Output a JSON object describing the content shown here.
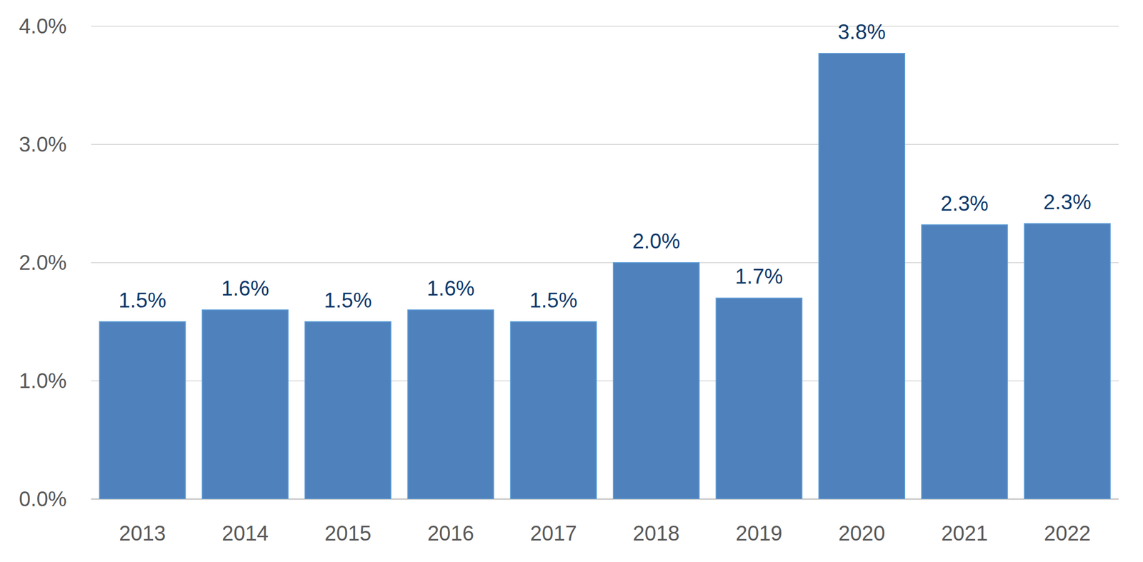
{
  "chart_data": {
    "type": "bar",
    "categories": [
      "2013",
      "2014",
      "2015",
      "2016",
      "2017",
      "2018",
      "2019",
      "2020",
      "2021",
      "2022"
    ],
    "values": [
      1.5,
      1.6,
      1.5,
      1.6,
      1.5,
      2.0,
      1.7,
      3.77,
      2.32,
      2.33
    ],
    "value_labels": [
      "1.5%",
      "1.6%",
      "1.5%",
      "1.6%",
      "1.5%",
      "2.0%",
      "1.7%",
      "3.8%",
      "2.3%",
      "2.3%"
    ],
    "color": "#4f81bd",
    "ylim": [
      0,
      4
    ],
    "yticks": [
      {
        "value": 0,
        "label": "0.0%"
      },
      {
        "value": 1,
        "label": "1.0%"
      },
      {
        "value": 2,
        "label": "2.0%"
      },
      {
        "value": 3,
        "label": "3.0%"
      },
      {
        "value": 4,
        "label": "4.0%"
      }
    ],
    "grid": true,
    "data_labels": true
  }
}
